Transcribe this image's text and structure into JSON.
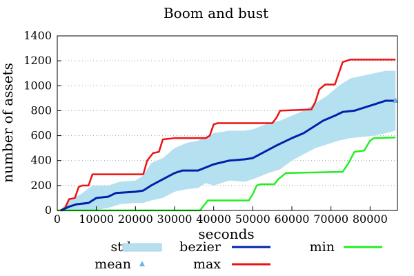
{
  "chart_data": {
    "type": "line",
    "title": "Boom and bust",
    "xlabel": "seconds",
    "ylabel": "number of assets",
    "xlim": [
      0,
      87000
    ],
    "ylim": [
      0,
      1400
    ],
    "xticks": [
      0,
      10000,
      20000,
      30000,
      40000,
      50000,
      60000,
      70000,
      80000
    ],
    "yticks": [
      0,
      200,
      400,
      600,
      800,
      1000,
      1200,
      1400
    ],
    "grid": "horizontal-dotted",
    "legend": {
      "placement": "bottom",
      "columns": [
        [
          "std",
          "mean"
        ],
        [
          "bezier",
          "max"
        ],
        [
          "min"
        ]
      ]
    },
    "series": [
      {
        "name": "max",
        "color": "#ee1111",
        "points": [
          [
            800,
            0
          ],
          [
            2000,
            20
          ],
          [
            3000,
            90
          ],
          [
            4500,
            100
          ],
          [
            5500,
            190
          ],
          [
            6500,
            200
          ],
          [
            8000,
            200
          ],
          [
            9000,
            290
          ],
          [
            22000,
            290
          ],
          [
            23000,
            400
          ],
          [
            24500,
            460
          ],
          [
            26000,
            470
          ],
          [
            27000,
            570
          ],
          [
            30000,
            580
          ],
          [
            38000,
            580
          ],
          [
            39000,
            600
          ],
          [
            40000,
            690
          ],
          [
            41000,
            700
          ],
          [
            55000,
            700
          ],
          [
            56000,
            740
          ],
          [
            57000,
            800
          ],
          [
            65000,
            810
          ],
          [
            66000,
            870
          ],
          [
            67000,
            970
          ],
          [
            68500,
            1010
          ],
          [
            71000,
            1010
          ],
          [
            72000,
            1100
          ],
          [
            73000,
            1190
          ],
          [
            75000,
            1210
          ],
          [
            86500,
            1210
          ]
        ]
      },
      {
        "name": "min",
        "color": "#22ee22",
        "points": [
          [
            0,
            0
          ],
          [
            36500,
            0
          ],
          [
            37500,
            40
          ],
          [
            38500,
            80
          ],
          [
            49000,
            80
          ],
          [
            50000,
            130
          ],
          [
            51000,
            200
          ],
          [
            52000,
            210
          ],
          [
            55500,
            210
          ],
          [
            56500,
            250
          ],
          [
            58500,
            300
          ],
          [
            59000,
            300
          ],
          [
            73000,
            310
          ],
          [
            74500,
            380
          ],
          [
            76000,
            470
          ],
          [
            78500,
            480
          ],
          [
            80000,
            560
          ],
          [
            81000,
            580
          ],
          [
            86500,
            585
          ]
        ]
      },
      {
        "name": "bezier",
        "color": "#0022aa",
        "points": [
          [
            1000,
            0
          ],
          [
            3000,
            30
          ],
          [
            5000,
            50
          ],
          [
            8000,
            60
          ],
          [
            10000,
            100
          ],
          [
            13000,
            110
          ],
          [
            15000,
            140
          ],
          [
            20000,
            150
          ],
          [
            22000,
            160
          ],
          [
            24000,
            200
          ],
          [
            27000,
            250
          ],
          [
            30000,
            300
          ],
          [
            32000,
            320
          ],
          [
            36000,
            320
          ],
          [
            40000,
            370
          ],
          [
            44000,
            400
          ],
          [
            48000,
            410
          ],
          [
            50000,
            420
          ],
          [
            53000,
            470
          ],
          [
            56000,
            520
          ],
          [
            60000,
            580
          ],
          [
            63000,
            620
          ],
          [
            65000,
            660
          ],
          [
            68000,
            720
          ],
          [
            71000,
            760
          ],
          [
            73000,
            790
          ],
          [
            76000,
            800
          ],
          [
            78000,
            820
          ],
          [
            81000,
            850
          ],
          [
            84000,
            880
          ],
          [
            86500,
            880
          ]
        ]
      },
      {
        "name": "std",
        "color": "#b4e0f0",
        "upper": [
          [
            1000,
            10
          ],
          [
            3000,
            80
          ],
          [
            6000,
            130
          ],
          [
            9000,
            200
          ],
          [
            13000,
            200
          ],
          [
            16000,
            230
          ],
          [
            20000,
            240
          ],
          [
            22000,
            280
          ],
          [
            24000,
            380
          ],
          [
            27000,
            420
          ],
          [
            30000,
            500
          ],
          [
            33000,
            540
          ],
          [
            36000,
            560
          ],
          [
            38000,
            590
          ],
          [
            40000,
            620
          ],
          [
            44000,
            640
          ],
          [
            48000,
            640
          ],
          [
            50000,
            650
          ],
          [
            54000,
            700
          ],
          [
            57000,
            720
          ],
          [
            60000,
            760
          ],
          [
            63000,
            800
          ],
          [
            66000,
            860
          ],
          [
            69000,
            920
          ],
          [
            72000,
            1000
          ],
          [
            75000,
            1060
          ],
          [
            78000,
            1080
          ],
          [
            81000,
            1100
          ],
          [
            84000,
            1120
          ],
          [
            86500,
            1120
          ]
        ],
        "lower": [
          [
            1000,
            0
          ],
          [
            3000,
            0
          ],
          [
            6000,
            0
          ],
          [
            9000,
            0
          ],
          [
            13000,
            20
          ],
          [
            16000,
            50
          ],
          [
            20000,
            60
          ],
          [
            22000,
            60
          ],
          [
            24000,
            80
          ],
          [
            27000,
            100
          ],
          [
            30000,
            150
          ],
          [
            33000,
            170
          ],
          [
            36000,
            180
          ],
          [
            38000,
            220
          ],
          [
            40000,
            200
          ],
          [
            44000,
            240
          ],
          [
            48000,
            230
          ],
          [
            50000,
            250
          ],
          [
            54000,
            300
          ],
          [
            57000,
            330
          ],
          [
            60000,
            400
          ],
          [
            63000,
            450
          ],
          [
            66000,
            500
          ],
          [
            69000,
            530
          ],
          [
            72000,
            560
          ],
          [
            75000,
            580
          ],
          [
            78000,
            590
          ],
          [
            81000,
            600
          ],
          [
            84000,
            620
          ],
          [
            86500,
            640
          ]
        ]
      },
      {
        "name": "mean",
        "color": "#6ab4e0",
        "points": [
          [
            86500,
            880
          ]
        ]
      }
    ]
  }
}
